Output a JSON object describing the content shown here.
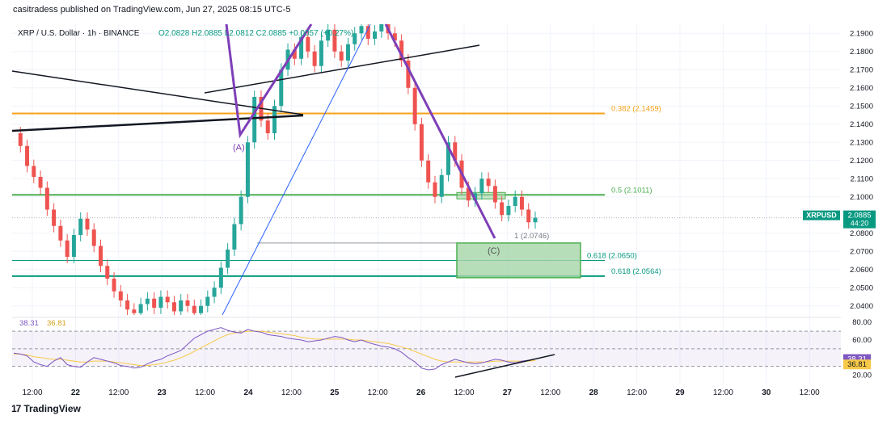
{
  "header": {
    "publisher": "casitradess published on TradingView.com, Jun 27, 2025 08:15 UTC-5"
  },
  "legend": {
    "symbol": "XRP / U.S. Dollar · 1h · BINANCE",
    "ohlc": "O2.0828  H2.0885  L2.0812  C2.0885  +0.0057 (+0.27%)"
  },
  "footer": {
    "brand": "TradingView",
    "logo": "17"
  },
  "colors": {
    "up": "#26a69a",
    "down": "#ef5350",
    "orange": "#f7a21b",
    "green": "#4caf50",
    "teal": "#089981",
    "purple": "#7e3fb8",
    "blue": "#2962ff",
    "rsi": "#7e57c2",
    "rsi_ma": "#f7c948"
  },
  "chart_data": {
    "type": "candlestick",
    "title": "XRP / U.S. Dollar · 1h · BINANCE",
    "price_axis": {
      "min": 2.035,
      "max": 2.195,
      "ticks": [
        "2.1900",
        "2.1800",
        "2.1700",
        "2.1600",
        "2.1500",
        "2.1400",
        "2.1300",
        "2.1200",
        "2.1100",
        "2.1000",
        "2.0800",
        "2.0700",
        "2.0600",
        "2.0500",
        "2.0400"
      ]
    },
    "time_axis": {
      "ticks": [
        "12:00",
        "22",
        "12:00",
        "23",
        "12:00",
        "24",
        "12:00",
        "25",
        "12:00",
        "26",
        "12:00",
        "27",
        "12:00",
        "28",
        "12:00",
        "29",
        "12:00",
        "30",
        "12:00"
      ]
    },
    "current_price": {
      "label": "XRPUSD",
      "value": "2.0885",
      "countdown": "44:20",
      "price": 2.0885
    },
    "price_series_approx": [
      2.135,
      2.128,
      2.117,
      2.111,
      2.105,
      2.093,
      2.084,
      2.076,
      2.067,
      2.079,
      2.088,
      2.082,
      2.073,
      2.062,
      2.055,
      2.048,
      2.043,
      2.038,
      2.036,
      2.041,
      2.044,
      2.039,
      2.045,
      2.042,
      2.037,
      2.043,
      2.04,
      2.036,
      2.04,
      2.045,
      2.05,
      2.061,
      2.071,
      2.085,
      2.1,
      2.13,
      2.155,
      2.142,
      2.135,
      2.15,
      2.17,
      2.181,
      2.176,
      2.188,
      2.18,
      2.172,
      2.186,
      2.192,
      2.18,
      2.175,
      2.184,
      2.19,
      2.194,
      2.187,
      2.191,
      2.195,
      2.19,
      2.186,
      2.175,
      2.16,
      2.14,
      2.12,
      2.108,
      2.1,
      2.112,
      2.13,
      2.12,
      2.105,
      2.098,
      2.102,
      2.11,
      2.106,
      2.097,
      2.09,
      2.095,
      2.1,
      2.093,
      2.086,
      2.0885
    ],
    "levels": [
      {
        "label": "0.382 (2.1459)",
        "price": 2.1459,
        "color": "orange"
      },
      {
        "label": "0.5 (2.1011)",
        "price": 2.1011,
        "color": "green"
      },
      {
        "label": "0.618 (2.0650)",
        "price": 2.065,
        "color": "teal"
      },
      {
        "label": "0.618 (2.0564)",
        "price": 2.0564,
        "color": "teal"
      },
      {
        "label": "1 (2.0746)",
        "price": 2.0746,
        "color": "gray"
      }
    ],
    "wave_labels": [
      "(A)",
      "(C)"
    ],
    "rsi": {
      "value": "38.31",
      "ma_value": "36.81",
      "ticks": [
        "80.00",
        "60.00",
        "20.00"
      ],
      "upper_band": 70,
      "lower_band": 30,
      "min": 15,
      "max": 82,
      "series_approx": [
        45,
        44,
        42,
        35,
        32,
        30,
        36,
        40,
        32,
        30,
        29,
        35,
        40,
        38,
        36,
        34,
        31,
        30,
        28,
        29,
        33,
        36,
        38,
        42,
        45,
        48,
        55,
        62,
        66,
        70,
        72,
        74,
        71,
        69,
        68,
        72,
        70,
        69,
        66,
        65,
        64,
        62,
        61,
        60,
        58,
        59,
        60,
        62,
        64,
        63,
        60,
        58,
        60,
        57,
        55,
        53,
        52,
        50,
        46,
        40,
        35,
        28,
        26,
        27,
        32,
        35,
        38,
        36,
        34,
        33,
        34,
        36,
        38,
        37,
        35,
        34,
        36,
        37,
        38.31
      ],
      "ma_series_approx": [
        44,
        44,
        43,
        41,
        40,
        39,
        38,
        38,
        37,
        36,
        35,
        35,
        36,
        36,
        36,
        35,
        34,
        33,
        32,
        31,
        31,
        32,
        33,
        35,
        37,
        40,
        43,
        47,
        51,
        55,
        59,
        63,
        66,
        68,
        69,
        70,
        70,
        70,
        69,
        68,
        67,
        66,
        65,
        63,
        62,
        61,
        61,
        61,
        61,
        61,
        61,
        60,
        60,
        59,
        58,
        57,
        56,
        54,
        52,
        50,
        47,
        44,
        41,
        38,
        36,
        35,
        35,
        35,
        35,
        35,
        35,
        35,
        36,
        36,
        36,
        36,
        36,
        36,
        36.81
      ]
    }
  }
}
